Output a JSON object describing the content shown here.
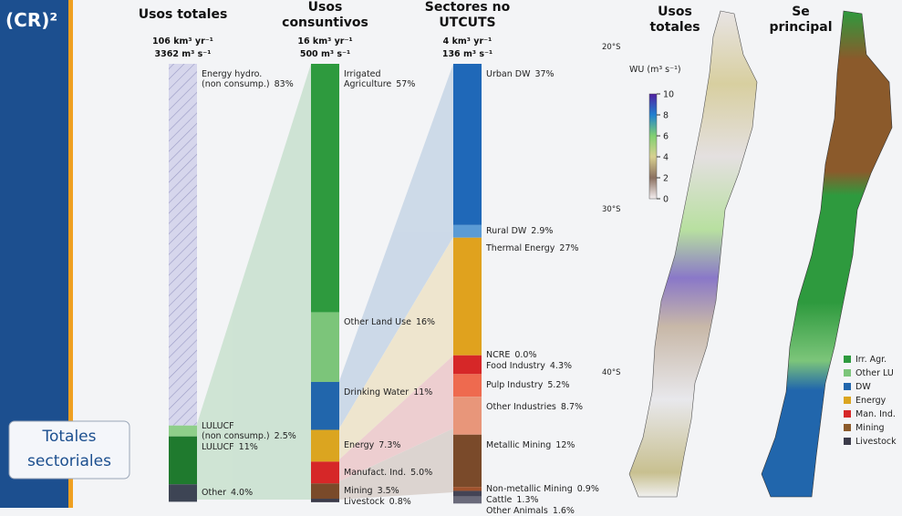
{
  "slide": {
    "logo": "(CR)²",
    "side_label": "Totales sectoriales"
  },
  "chart_data": [
    {
      "type": "stacked-bar",
      "title": "Usos totales",
      "totals": [
        "106 km³ yr⁻¹",
        "3362 m³ s⁻¹"
      ],
      "ylim": [
        0,
        100
      ],
      "series": [
        {
          "name": "Energy hydro.\n(non consump.)",
          "color": "#d6d6ec",
          "hatch": true,
          "values": [
            83
          ],
          "value_labels": [
            "83%"
          ]
        },
        {
          "name": "LULUCF\n(non consump.)",
          "color": "#8fcf8a",
          "values": [
            2.5
          ],
          "value_labels": [
            "2.5%"
          ]
        },
        {
          "name": "LULUCF",
          "color": "#1f7a2e",
          "values": [
            11
          ],
          "value_labels": [
            "11%"
          ]
        },
        {
          "name": "Other",
          "color": "#3d4454",
          "values": [
            4.0
          ],
          "value_labels": [
            "4.0%"
          ]
        }
      ]
    },
    {
      "type": "stacked-bar",
      "title": "Usos\nconsuntivos",
      "totals": [
        "16 km³ yr⁻¹",
        "500 m³ s⁻¹"
      ],
      "ylim": [
        0,
        100
      ],
      "series": [
        {
          "name": "Irrigated\nAgriculture",
          "color": "#2e9a3e",
          "values": [
            57
          ],
          "value_labels": [
            "57%"
          ]
        },
        {
          "name": "Other Land Use",
          "color": "#7cc57a",
          "values": [
            16
          ],
          "value_labels": [
            "16%"
          ]
        },
        {
          "name": "Drinking Water",
          "color": "#2166ac",
          "values": [
            11
          ],
          "value_labels": [
            "11%"
          ]
        },
        {
          "name": "Energy",
          "color": "#dba520",
          "values": [
            7.3
          ],
          "value_labels": [
            "7.3%"
          ]
        },
        {
          "name": "Manufact. Ind.",
          "color": "#d62728",
          "values": [
            5.0
          ],
          "value_labels": [
            "5.0%"
          ]
        },
        {
          "name": "Mining",
          "color": "#7a4a2a",
          "values": [
            3.5
          ],
          "value_labels": [
            "3.5%"
          ]
        },
        {
          "name": "Livestock",
          "color": "#3b3b4a",
          "values": [
            0.8
          ],
          "value_labels": [
            "0.8%"
          ]
        }
      ]
    },
    {
      "type": "stacked-bar",
      "title": "Sectores no\nUTCUTS",
      "totals": [
        "4 km³ yr⁻¹",
        "136 m³ s⁻¹"
      ],
      "ylim": [
        0,
        100
      ],
      "series": [
        {
          "name": "Urban DW",
          "color": "#1f68b8",
          "values": [
            37
          ],
          "value_labels": [
            "37%"
          ]
        },
        {
          "name": "Rural DW",
          "color": "#5b9bd5",
          "values": [
            2.9
          ],
          "value_labels": [
            "2.9%"
          ]
        },
        {
          "name": "Thermal Energy",
          "color": "#e0a21e",
          "values": [
            27
          ],
          "value_labels": [
            "27%"
          ]
        },
        {
          "name": "NCRE",
          "color": "#e8b84a",
          "values": [
            0.0
          ],
          "value_labels": [
            "0.0%"
          ]
        },
        {
          "name": "Food Industry",
          "color": "#d62728",
          "values": [
            4.3
          ],
          "value_labels": [
            "4.3%"
          ]
        },
        {
          "name": "Pulp Industry",
          "color": "#ee6a4f",
          "values": [
            5.2
          ],
          "value_labels": [
            "5.2%"
          ]
        },
        {
          "name": "Other Industries",
          "color": "#e8967a",
          "values": [
            8.7
          ],
          "value_labels": [
            "8.7%"
          ]
        },
        {
          "name": "Metallic Mining",
          "color": "#7a4a2a",
          "values": [
            12
          ],
          "value_labels": [
            "12%"
          ]
        },
        {
          "name": "Non-metallic Mining",
          "color": "#a0522d",
          "values": [
            0.9
          ],
          "value_labels": [
            "0.9%"
          ]
        },
        {
          "name": "Cattle",
          "color": "#444455",
          "values": [
            1.3
          ],
          "value_labels": [
            "1.3%"
          ]
        },
        {
          "name": "Other Animals",
          "color": "#6a6a7a",
          "values": [
            1.6
          ],
          "value_labels": [
            "1.6%"
          ]
        }
      ]
    }
  ],
  "maps": {
    "titles": [
      "Usos\ntotales",
      "Se\nprincipal"
    ],
    "lat_labels": [
      "20°S",
      "30°S",
      "40°S"
    ],
    "colorbar": {
      "label": "WU (m³ s⁻¹)",
      "lim": [
        0,
        10
      ],
      "ticks": [
        0,
        2,
        4,
        6,
        8,
        10
      ]
    },
    "legend": [
      {
        "name": "Irr. Agr.",
        "color": "#2e9a3e"
      },
      {
        "name": "Other LU",
        "color": "#7cc57a"
      },
      {
        "name": "DW",
        "color": "#2166ac"
      },
      {
        "name": "Energy",
        "color": "#dba520"
      },
      {
        "name": "Man. Ind.",
        "color": "#d62728"
      },
      {
        "name": "Mining",
        "color": "#8b5a2b"
      },
      {
        "name": "Livestock",
        "color": "#3b3b4a"
      }
    ]
  }
}
